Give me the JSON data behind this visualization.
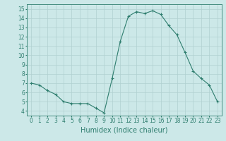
{
  "x": [
    0,
    1,
    2,
    3,
    4,
    5,
    6,
    7,
    8,
    9,
    10,
    11,
    12,
    13,
    14,
    15,
    16,
    17,
    18,
    19,
    20,
    21,
    22,
    23
  ],
  "y": [
    7.0,
    6.8,
    6.2,
    5.8,
    5.0,
    4.8,
    4.8,
    4.8,
    4.3,
    3.8,
    7.5,
    11.5,
    14.2,
    14.7,
    14.5,
    14.8,
    14.4,
    13.2,
    12.2,
    10.3,
    8.3,
    7.5,
    6.8,
    5.0
  ],
  "line_color": "#2e7d6e",
  "marker": "+",
  "marker_size": 3,
  "bg_color": "#cce8e8",
  "grid_color": "#b0d0d0",
  "xlabel": "Humidex (Indice chaleur)",
  "xlim": [
    -0.5,
    23.5
  ],
  "ylim": [
    3.5,
    15.5
  ],
  "yticks": [
    4,
    5,
    6,
    7,
    8,
    9,
    10,
    11,
    12,
    13,
    14,
    15
  ],
  "xticks": [
    0,
    1,
    2,
    3,
    4,
    5,
    6,
    7,
    8,
    9,
    10,
    11,
    12,
    13,
    14,
    15,
    16,
    17,
    18,
    19,
    20,
    21,
    22,
    23
  ],
  "tick_label_fontsize": 5.5,
  "xlabel_fontsize": 7
}
